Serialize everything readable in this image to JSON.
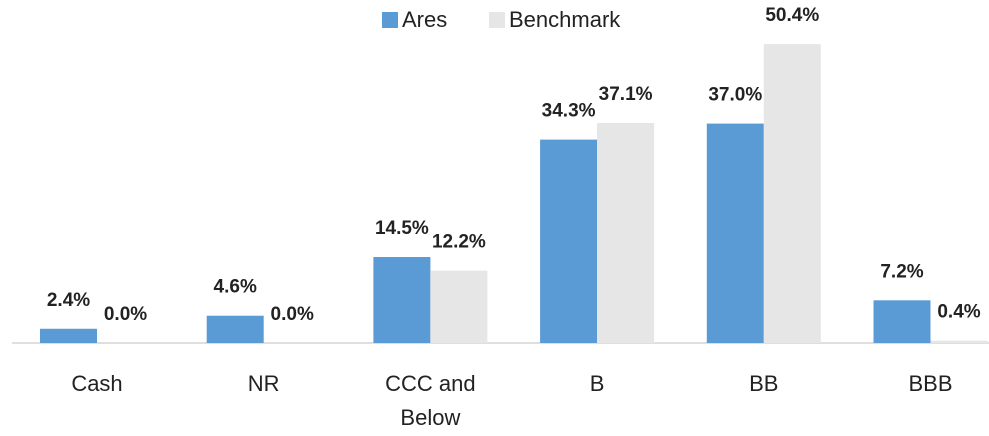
{
  "chart_data": {
    "type": "bar",
    "categories": [
      "Cash",
      "NR",
      "CCC and Below",
      "B",
      "BB",
      "BBB"
    ],
    "series": [
      {
        "name": "Ares",
        "color": "#5b9bd5",
        "values": [
          2.4,
          4.6,
          14.5,
          34.3,
          37.0,
          7.2
        ],
        "value_labels": [
          "2.4%",
          "4.6%",
          "14.5%",
          "34.3%",
          "37.0%",
          "7.2%"
        ]
      },
      {
        "name": "Benchmark",
        "color": "#e7e6e6",
        "values": [
          0.0,
          0.0,
          12.2,
          37.1,
          50.4,
          0.4
        ],
        "value_labels": [
          "0.0%",
          "0.0%",
          "12.2%",
          "37.1%",
          "50.4%",
          "0.4%"
        ]
      }
    ],
    "legend": "top"
  }
}
